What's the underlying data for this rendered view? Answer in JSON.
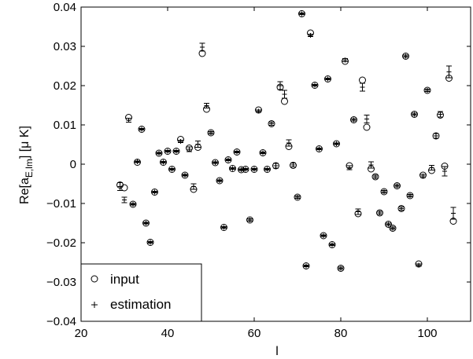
{
  "chart_data": {
    "type": "scatter",
    "title": "",
    "xlabel": "l",
    "ylabel": "Re[a_{E,lm}] [μ K]",
    "ylabel_main": "Re[a",
    "ylabel_sub": "E,lm",
    "ylabel_tail": "] [μ K]",
    "xlim": [
      20,
      110
    ],
    "ylim": [
      -0.04,
      0.04
    ],
    "xticks": [
      20,
      40,
      60,
      80,
      100
    ],
    "xtick_labels": [
      "20",
      "40",
      "60",
      "80",
      "100"
    ],
    "yticks": [
      -0.04,
      -0.03,
      -0.02,
      -0.01,
      0,
      0.01,
      0.02,
      0.03,
      0.04
    ],
    "ytick_labels": [
      "−0.04",
      "−0.03",
      "−0.02",
      "−0.01",
      "0",
      "0.01",
      "0.02",
      "0.03",
      "0.04"
    ],
    "grid": false,
    "legend_position": "bottom-left",
    "series": [
      {
        "name": "input",
        "marker": "circle"
      },
      {
        "name": "estimation",
        "marker": "plus",
        "error_bars": true
      }
    ],
    "points": [
      {
        "x": 29,
        "input": -0.0053,
        "est": -0.0057,
        "err": 0.001
      },
      {
        "x": 30,
        "input": -0.006,
        "est": -0.0091,
        "err": 0.0007
      },
      {
        "x": 31,
        "input": 0.0119,
        "est": 0.0112,
        "err": 0.0005
      },
      {
        "x": 32,
        "input": -0.0102,
        "est": -0.0102,
        "err": 0.0002
      },
      {
        "x": 33,
        "input": 0.0005,
        "est": 0.0006,
        "err": 0.0002
      },
      {
        "x": 34,
        "input": 0.0089,
        "est": 0.0089,
        "err": 0.0002
      },
      {
        "x": 35,
        "input": -0.015,
        "est": -0.015,
        "err": 0.0002
      },
      {
        "x": 36,
        "input": -0.0199,
        "est": -0.0199,
        "err": 0.0002
      },
      {
        "x": 37,
        "input": -0.0071,
        "est": -0.0071,
        "err": 0.0002
      },
      {
        "x": 38,
        "input": 0.0028,
        "est": 0.0028,
        "err": 0.0002
      },
      {
        "x": 39,
        "input": 0.0005,
        "est": 0.0005,
        "err": 0.0002
      },
      {
        "x": 40,
        "input": 0.0033,
        "est": 0.0033,
        "err": 0.0002
      },
      {
        "x": 41,
        "input": -0.0013,
        "est": -0.0013,
        "err": 0.0002
      },
      {
        "x": 42,
        "input": 0.0033,
        "est": 0.0033,
        "err": 0.0002
      },
      {
        "x": 43,
        "input": 0.0063,
        "est": 0.0058,
        "err": 0.0003
      },
      {
        "x": 44,
        "input": -0.0028,
        "est": -0.0028,
        "err": 0.0002
      },
      {
        "x": 45,
        "input": 0.0041,
        "est": 0.0038,
        "err": 0.0006
      },
      {
        "x": 46,
        "input": -0.0064,
        "est": -0.0057,
        "err": 0.0007
      },
      {
        "x": 47,
        "input": 0.0043,
        "est": 0.0051,
        "err": 0.0008
      },
      {
        "x": 48,
        "input": 0.0282,
        "est": 0.0298,
        "err": 0.001
      },
      {
        "x": 49,
        "input": 0.014,
        "est": 0.0149,
        "err": 0.0006
      },
      {
        "x": 50,
        "input": 0.008,
        "est": 0.008,
        "err": 0.0003
      },
      {
        "x": 51,
        "input": 0.0004,
        "est": 0.0004,
        "err": 0.0002
      },
      {
        "x": 52,
        "input": -0.0042,
        "est": -0.0042,
        "err": 0.0002
      },
      {
        "x": 53,
        "input": -0.0161,
        "est": -0.0161,
        "err": 0.0002
      },
      {
        "x": 54,
        "input": 0.0011,
        "est": 0.0011,
        "err": 0.0002
      },
      {
        "x": 55,
        "input": -0.0011,
        "est": -0.0011,
        "err": 0.0002
      },
      {
        "x": 56,
        "input": 0.0031,
        "est": 0.0031,
        "err": 0.0002
      },
      {
        "x": 57,
        "input": -0.0014,
        "est": -0.0014,
        "err": 0.0002
      },
      {
        "x": 58,
        "input": -0.0013,
        "est": -0.0013,
        "err": 0.0002
      },
      {
        "x": 59,
        "input": -0.0142,
        "est": -0.0142,
        "err": 0.0003
      },
      {
        "x": 60,
        "input": -0.0013,
        "est": -0.0013,
        "err": 0.0002
      },
      {
        "x": 61,
        "input": 0.0138,
        "est": 0.0135,
        "err": 0.0003
      },
      {
        "x": 62,
        "input": 0.0029,
        "est": 0.0029,
        "err": 0.0002
      },
      {
        "x": 63,
        "input": -0.0013,
        "est": -0.0013,
        "err": 0.0002
      },
      {
        "x": 64,
        "input": 0.0103,
        "est": 0.0103,
        "err": 0.0004
      },
      {
        "x": 65,
        "input": -0.0004,
        "est": -0.0004,
        "err": 0.0006
      },
      {
        "x": 66,
        "input": 0.0196,
        "est": 0.02,
        "err": 0.001
      },
      {
        "x": 67,
        "input": 0.016,
        "est": 0.0178,
        "err": 0.001
      },
      {
        "x": 68,
        "input": 0.0045,
        "est": 0.0054,
        "err": 0.0008
      },
      {
        "x": 69,
        "input": -0.0003,
        "est": -0.0002,
        "err": 0.0005
      },
      {
        "x": 70,
        "input": -0.0084,
        "est": -0.0084,
        "err": 0.0003
      },
      {
        "x": 71,
        "input": 0.0383,
        "est": 0.0383,
        "err": 0.0002
      },
      {
        "x": 72,
        "input": -0.0259,
        "est": -0.0259,
        "err": 0.0002
      },
      {
        "x": 73,
        "input": 0.0334,
        "est": 0.0328,
        "err": 0.0003
      },
      {
        "x": 74,
        "input": 0.0201,
        "est": 0.0201,
        "err": 0.0002
      },
      {
        "x": 75,
        "input": 0.0039,
        "est": 0.0039,
        "err": 0.0002
      },
      {
        "x": 76,
        "input": -0.0182,
        "est": -0.0182,
        "err": 0.0002
      },
      {
        "x": 77,
        "input": 0.0217,
        "est": 0.0217,
        "err": 0.0002
      },
      {
        "x": 78,
        "input": -0.0205,
        "est": -0.0205,
        "err": 0.0002
      },
      {
        "x": 79,
        "input": 0.0052,
        "est": 0.0052,
        "err": 0.0002
      },
      {
        "x": 80,
        "input": -0.0265,
        "est": -0.0265,
        "err": 0.0003
      },
      {
        "x": 81,
        "input": 0.0262,
        "est": 0.0265,
        "err": 0.0004
      },
      {
        "x": 82,
        "input": -0.0004,
        "est": -0.0009,
        "err": 0.0005
      },
      {
        "x": 83,
        "input": 0.0113,
        "est": 0.0113,
        "err": 0.0003
      },
      {
        "x": 84,
        "input": -0.0126,
        "est": -0.0121,
        "err": 0.0007
      },
      {
        "x": 85,
        "input": 0.0214,
        "est": 0.0196,
        "err": 0.001
      },
      {
        "x": 86,
        "input": 0.0094,
        "est": 0.0115,
        "err": 0.001
      },
      {
        "x": 87,
        "input": -0.0012,
        "est": -0.0002,
        "err": 0.0008
      },
      {
        "x": 88,
        "input": -0.0032,
        "est": -0.0032,
        "err": 0.0004
      },
      {
        "x": 89,
        "input": -0.0124,
        "est": -0.0124,
        "err": 0.0004
      },
      {
        "x": 90,
        "input": -0.007,
        "est": -0.007,
        "err": 0.0003
      },
      {
        "x": 91,
        "input": -0.0153,
        "est": -0.0153,
        "err": 0.0003
      },
      {
        "x": 92,
        "input": -0.0163,
        "est": -0.0163,
        "err": 0.0003
      },
      {
        "x": 93,
        "input": -0.0055,
        "est": -0.0055,
        "err": 0.0003
      },
      {
        "x": 94,
        "input": -0.0113,
        "est": -0.0113,
        "err": 0.0004
      },
      {
        "x": 95,
        "input": 0.0275,
        "est": 0.0275,
        "err": 0.0003
      },
      {
        "x": 96,
        "input": -0.008,
        "est": -0.008,
        "err": 0.0003
      },
      {
        "x": 97,
        "input": 0.0127,
        "est": 0.0127,
        "err": 0.0003
      },
      {
        "x": 98,
        "input": -0.0254,
        "est": -0.0257,
        "err": 0.0003
      },
      {
        "x": 99,
        "input": -0.0028,
        "est": -0.003,
        "err": 0.0004
      },
      {
        "x": 100,
        "input": 0.0188,
        "est": 0.0188,
        "err": 0.0003
      },
      {
        "x": 101,
        "input": -0.0016,
        "est": -0.0009,
        "err": 0.0006
      },
      {
        "x": 102,
        "input": 0.0072,
        "est": 0.0072,
        "err": 0.0006
      },
      {
        "x": 103,
        "input": 0.0125,
        "est": 0.0127,
        "err": 0.0007
      },
      {
        "x": 104,
        "input": -0.0005,
        "est": -0.0018,
        "err": 0.0012
      },
      {
        "x": 105,
        "input": 0.0219,
        "est": 0.0235,
        "err": 0.0015
      },
      {
        "x": 106,
        "input": -0.0145,
        "est": -0.0125,
        "err": 0.0015
      }
    ]
  }
}
